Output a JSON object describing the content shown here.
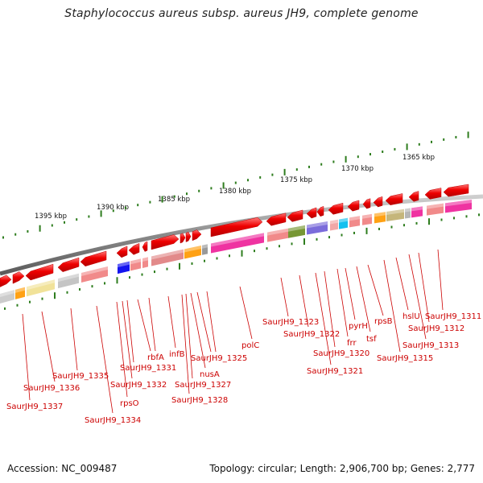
{
  "title": "Staphylococcus aureus subsp. aureus JH9, complete genome",
  "footer": {
    "accession": "Accession: NC_009487",
    "summary": "Topology: circular; Length: 2,906,700 bp; Genes: 2,777"
  },
  "scale_labels": [
    "1395 kbp",
    "1390 kbp",
    "1385 kbp",
    "1380 kbp",
    "1375 kbp",
    "1370 kbp",
    "1365 kbp"
  ],
  "gene_labels": [
    "SaurJH9_1337",
    "SaurJH9_1336",
    "SaurJH9_1335",
    "SaurJH9_1334",
    "rpsO",
    "SaurJH9_1332",
    "SaurJH9_1331",
    "rbfA",
    "infB",
    "SaurJH9_1328",
    "SaurJH9_1327",
    "nusA",
    "SaurJH9_1325",
    "polC",
    "SaurJH9_1323",
    "SaurJH9_1322",
    "SaurJH9_1321",
    "SaurJH9_1320",
    "frr",
    "pyrH",
    "tsf",
    "rpsB",
    "SaurJH9_1315",
    "hslU",
    "SaurJH9_1313",
    "SaurJH9_1312",
    "SaurJH9_1311"
  ],
  "colors": {
    "gene_arrow": "#ee0000",
    "label_line": "#cc0000",
    "backbone": "#777777",
    "tick": "#2e7d1e"
  }
}
